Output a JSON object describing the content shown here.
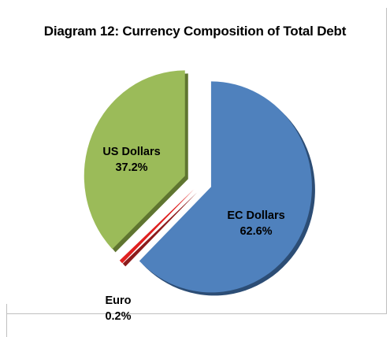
{
  "chart_data": {
    "type": "pie",
    "title": "Diagram 12: Currency Composition of Total Debt",
    "slices": [
      {
        "name": "EC Dollars",
        "percent_label": "62.6%",
        "value": 62.6,
        "color": "#4f81bd",
        "shadow": "#2c4d75"
      },
      {
        "name": "Euro",
        "percent_label": "0.2%",
        "value": 0.2,
        "color": "#e02020",
        "shadow": "#8c1a1a"
      },
      {
        "name": "US Dollars",
        "percent_label": "37.2%",
        "value": 37.2,
        "color": "#9bbb59",
        "shadow": "#5f7530"
      }
    ],
    "exploded": true,
    "legend": "none"
  }
}
